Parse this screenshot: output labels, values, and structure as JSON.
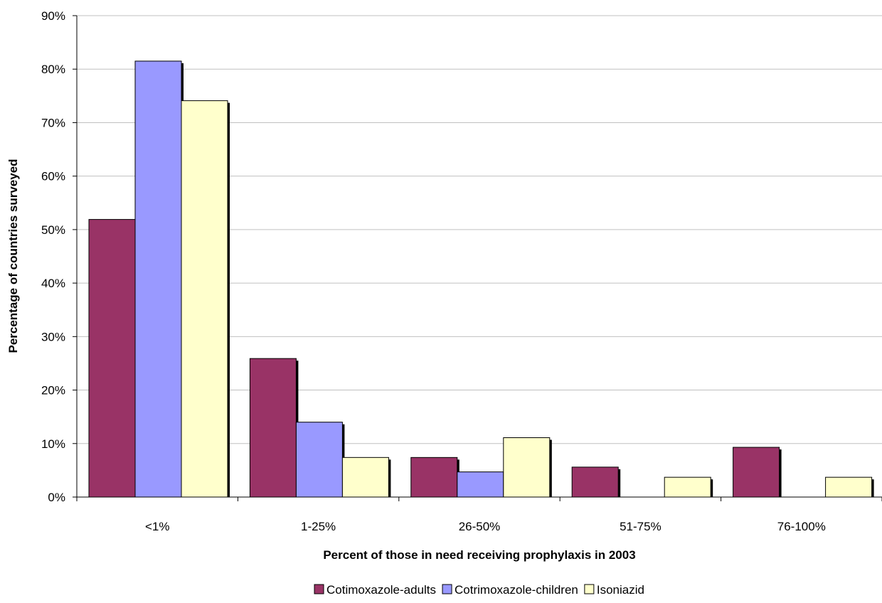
{
  "chart_data": {
    "type": "bar",
    "title": "",
    "xlabel": "Percent of those in need receiving prophylaxis in 2003",
    "ylabel": "Percentage of countries surveyed",
    "categories": [
      "<1%",
      "1-25%",
      "26-50%",
      "51-75%",
      "76-100%"
    ],
    "y_ticks": [
      "0%",
      "10%",
      "20%",
      "30%",
      "40%",
      "50%",
      "60%",
      "70%",
      "80%",
      "90%"
    ],
    "ylim": [
      0,
      90
    ],
    "grid": true,
    "legend_position": "bottom",
    "series": [
      {
        "name": "Cotimoxazole-adults",
        "color": "#993366",
        "values": [
          51.9,
          25.9,
          7.4,
          5.6,
          9.3
        ]
      },
      {
        "name": "Cotrimoxazole-children",
        "color": "#9999ff",
        "values": [
          81.5,
          14.0,
          4.7,
          0,
          0
        ]
      },
      {
        "name": "Isoniazid",
        "color": "#ffffcc",
        "values": [
          74.1,
          7.4,
          11.1,
          3.7,
          3.7
        ]
      }
    ]
  }
}
